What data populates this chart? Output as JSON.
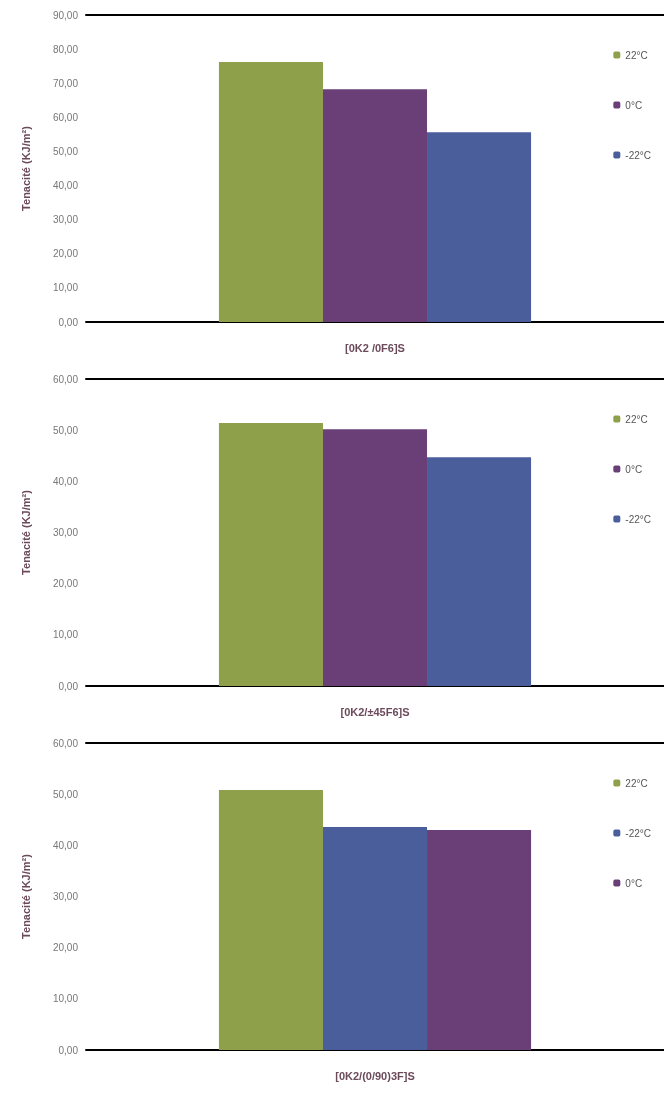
{
  "chart_data": [
    {
      "type": "bar",
      "xlabel": "[0K2 /0F6]S",
      "ylabel": "Tenacité (KJ/m²)",
      "categories": [
        null
      ],
      "series": [
        {
          "name": "22°C",
          "color": "#8fa04a",
          "values": [
            76.2
          ]
        },
        {
          "name": "0°C",
          "color": "#6a3f78",
          "values": [
            68.2
          ]
        },
        {
          "name": "-22°C",
          "color": "#4a5e9c",
          "values": [
            55.6
          ]
        }
      ],
      "ylim": [
        0,
        90
      ],
      "yticks": [
        {
          "value": 0,
          "label": "0,00"
        },
        {
          "value": 10,
          "label": "10,00"
        },
        {
          "value": 20,
          "label": "20,00"
        },
        {
          "value": 30,
          "label": "30,00"
        },
        {
          "value": 40,
          "label": "40,00"
        },
        {
          "value": 50,
          "label": "50,00"
        },
        {
          "value": 60,
          "label": "60,00"
        },
        {
          "value": 70,
          "label": "70,00"
        },
        {
          "value": 80,
          "label": "80,00"
        },
        {
          "value": 90,
          "label": "90,00"
        }
      ],
      "grid": false,
      "legend": "right"
    },
    {
      "type": "bar",
      "xlabel": "[0K2/±45F6]S",
      "ylabel": "Tenacité (KJ/m²)",
      "categories": [
        null
      ],
      "series": [
        {
          "name": "22°C",
          "color": "#8fa04a",
          "values": [
            51.4
          ]
        },
        {
          "name": "0°C",
          "color": "#6a3f78",
          "values": [
            50.2
          ]
        },
        {
          "name": "-22°C",
          "color": "#4a5e9c",
          "values": [
            44.7
          ]
        }
      ],
      "ylim": [
        0,
        60
      ],
      "yticks": [
        {
          "value": 0,
          "label": "0,00"
        },
        {
          "value": 10,
          "label": "10,00"
        },
        {
          "value": 20,
          "label": "20,00"
        },
        {
          "value": 30,
          "label": "30,00"
        },
        {
          "value": 40,
          "label": "40,00"
        },
        {
          "value": 50,
          "label": "50,00"
        },
        {
          "value": 60,
          "label": "60,00"
        }
      ],
      "grid": false,
      "legend": "right"
    },
    {
      "type": "bar",
      "xlabel": "[0K2/(0/90)3F]S",
      "ylabel": "Tenacité (KJ/m²)",
      "categories": [
        null
      ],
      "series": [
        {
          "name": "22°C",
          "color": "#8fa04a",
          "values": [
            50.8
          ]
        },
        {
          "name": "-22°C",
          "color": "#4a5e9c",
          "values": [
            43.6
          ]
        },
        {
          "name": "0°C",
          "color": "#6a3f78",
          "values": [
            43.0
          ]
        }
      ],
      "ylim": [
        0,
        60
      ],
      "yticks": [
        {
          "value": 0,
          "label": "0,00"
        },
        {
          "value": 10,
          "label": "10,00"
        },
        {
          "value": 20,
          "label": "20,00"
        },
        {
          "value": 30,
          "label": "30,00"
        },
        {
          "value": 40,
          "label": "40,00"
        },
        {
          "value": 50,
          "label": "50,00"
        },
        {
          "value": 60,
          "label": "60,00"
        }
      ],
      "grid": false,
      "legend": "right"
    }
  ]
}
